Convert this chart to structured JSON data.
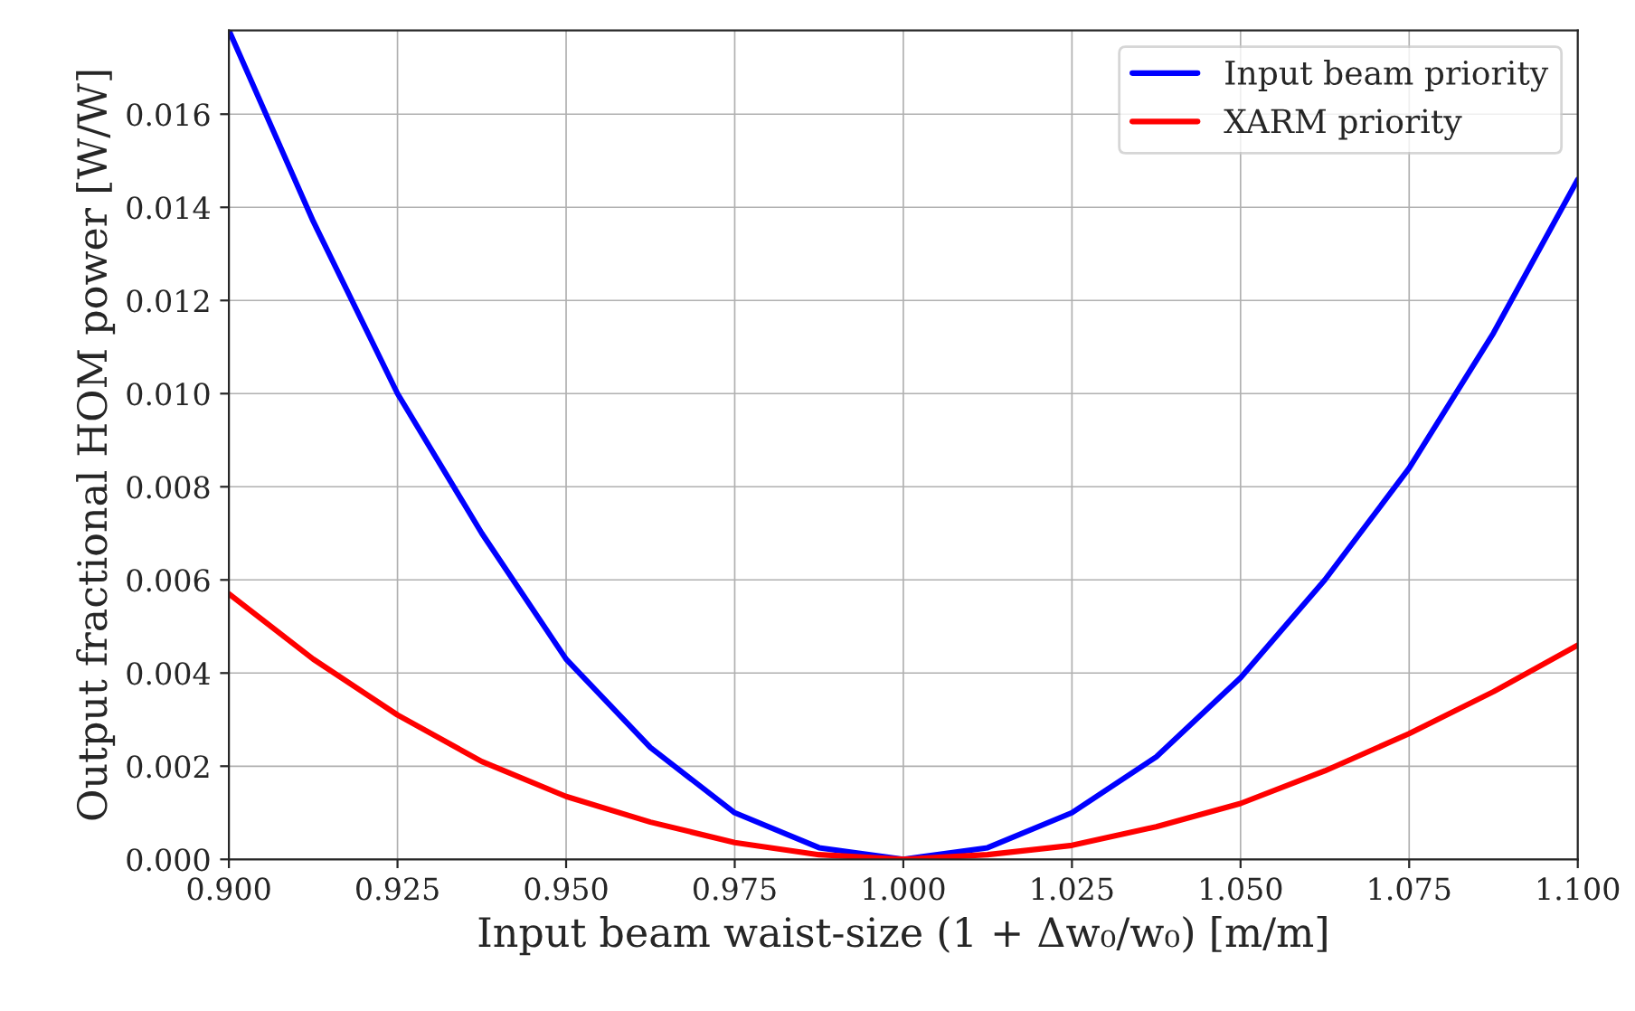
{
  "chart_data": {
    "type": "line",
    "xlabel": "Input beam waist-size (1 + Δw₀/w₀) [m/m]",
    "ylabel": "Output fractional HOM power [W/W]",
    "x": [
      0.9,
      0.9125,
      0.925,
      0.9375,
      0.95,
      0.9625,
      0.975,
      0.9875,
      1.0,
      1.0125,
      1.025,
      1.0375,
      1.05,
      1.0625,
      1.075,
      1.0875,
      1.1
    ],
    "series": [
      {
        "name": "Input beam priority",
        "color": "#0000ff",
        "values": [
          0.0178,
          0.0137,
          0.01,
          0.007,
          0.0043,
          0.0024,
          0.001,
          0.00025,
          0.0,
          0.00025,
          0.001,
          0.0022,
          0.0039,
          0.006,
          0.0084,
          0.0113,
          0.0146
        ]
      },
      {
        "name": "XARM priority",
        "color": "#ff0000",
        "values": [
          0.0057,
          0.0043,
          0.0031,
          0.0021,
          0.00135,
          0.0008,
          0.00036,
          0.0001,
          0.0,
          0.0001,
          0.0003,
          0.0007,
          0.0012,
          0.0019,
          0.0027,
          0.0036,
          0.0046
        ]
      }
    ],
    "xlim": [
      0.9,
      1.1
    ],
    "xticks": [
      {
        "value": 0.9,
        "label": "0.900"
      },
      {
        "value": 0.925,
        "label": "0.925"
      },
      {
        "value": 0.95,
        "label": "0.950"
      },
      {
        "value": 0.975,
        "label": "0.975"
      },
      {
        "value": 1.0,
        "label": "1.000"
      },
      {
        "value": 1.025,
        "label": "1.025"
      },
      {
        "value": 1.05,
        "label": "1.050"
      },
      {
        "value": 1.075,
        "label": "1.075"
      },
      {
        "value": 1.1,
        "label": "1.100"
      }
    ],
    "ylim": [
      0,
      0.0178
    ],
    "yticks": [
      {
        "value": 0,
        "label": "0.000"
      },
      {
        "value": 0.002,
        "label": "0.002"
      },
      {
        "value": 0.004,
        "label": "0.004"
      },
      {
        "value": 0.006,
        "label": "0.006"
      },
      {
        "value": 0.008,
        "label": "0.008"
      },
      {
        "value": 0.01,
        "label": "0.010"
      },
      {
        "value": 0.012,
        "label": "0.012"
      },
      {
        "value": 0.014,
        "label": "0.014"
      },
      {
        "value": 0.016,
        "label": "0.016"
      }
    ],
    "grid": true,
    "legend": "upper right",
    "line_style": "solid"
  }
}
